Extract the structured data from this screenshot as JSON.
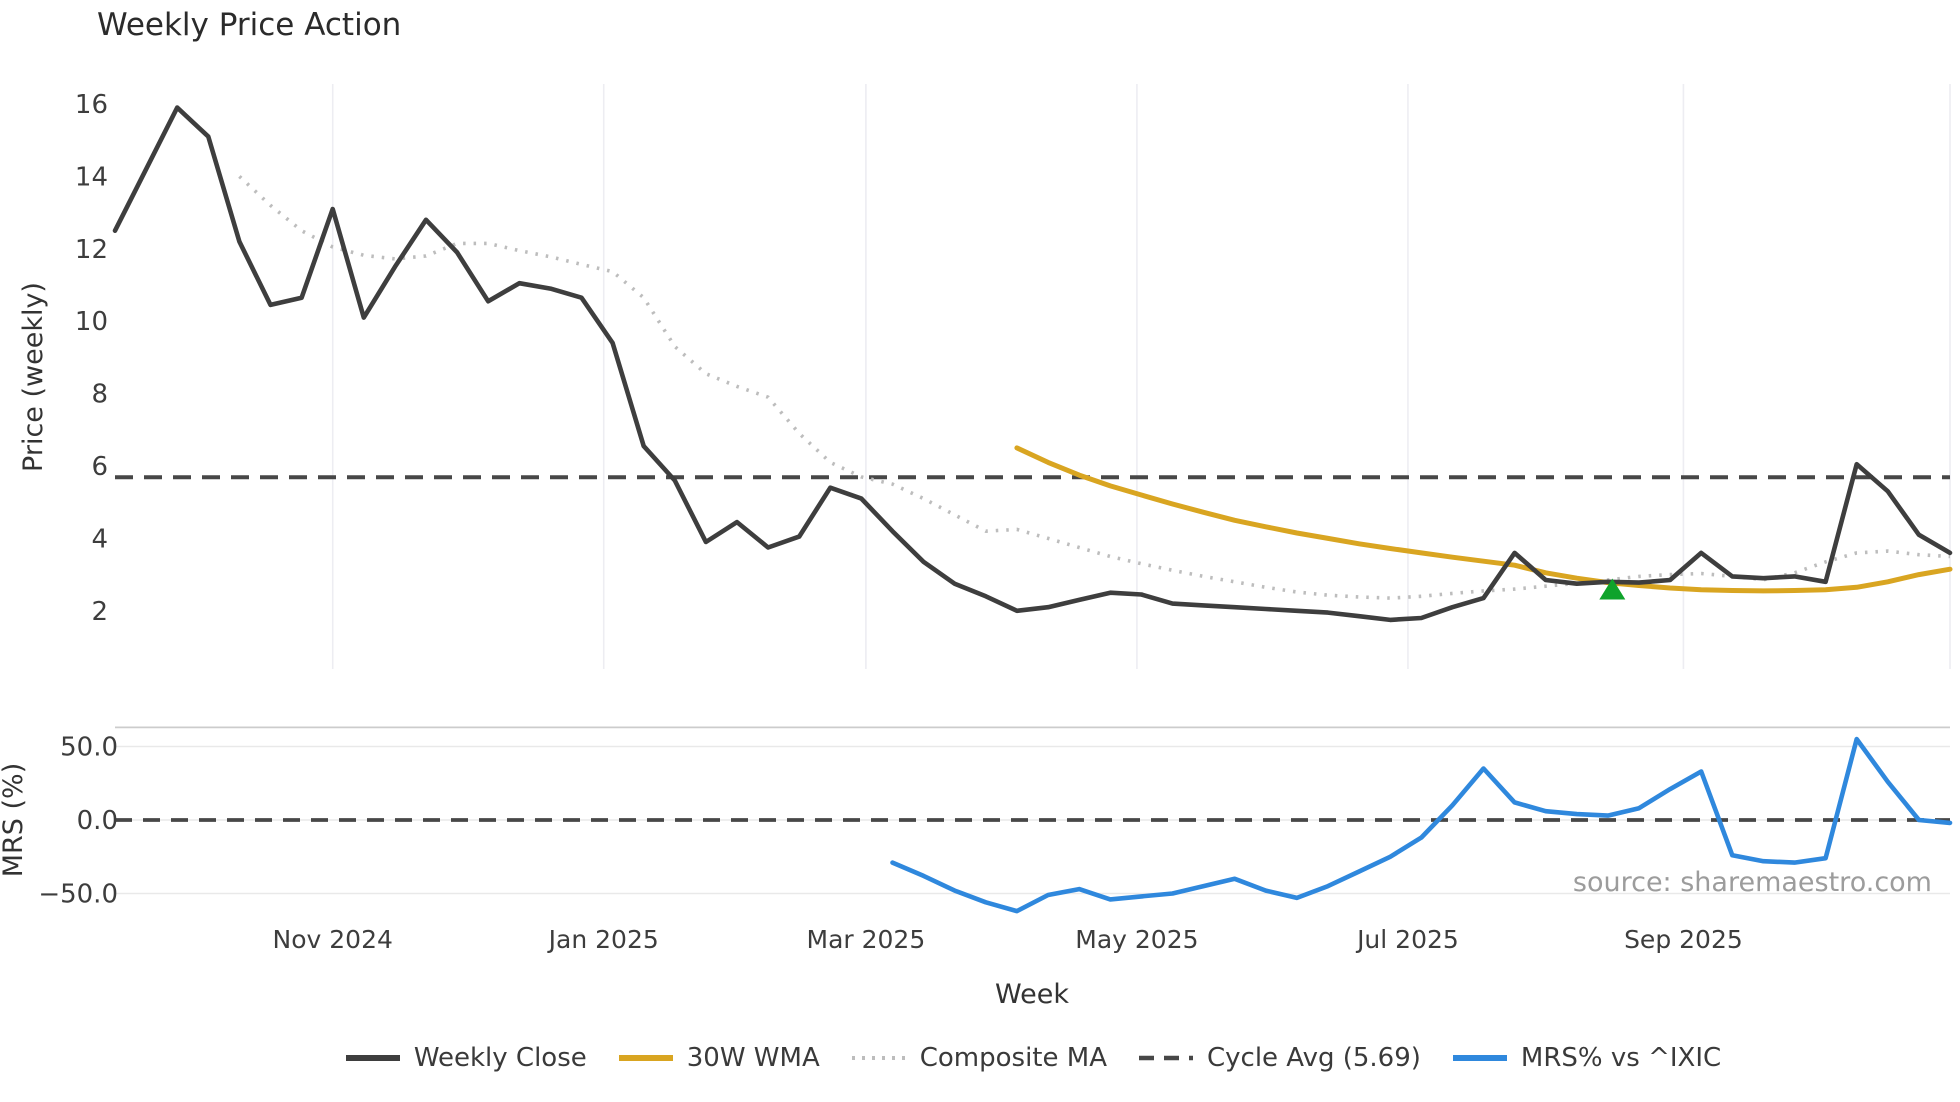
{
  "title": "Weekly Price Action",
  "source_note": "source: sharemaestro.com",
  "colors": {
    "weekly_close": "#3e3e3e",
    "wma_30w": "#d9a521",
    "composite_ma": "#bdbdbd",
    "cycle_avg": "#474747",
    "mrs_line": "#2f88dd",
    "signal_green": "#0fa32b",
    "grid": "#ededf2",
    "mrs_grid": "#e9e9e9",
    "mrs_top_border": "#cccccc",
    "background": "#ffffff"
  },
  "weeks": [
    "2024-09-13",
    "2024-09-20",
    "2024-09-27",
    "2024-10-04",
    "2024-10-11",
    "2024-10-18",
    "2024-10-25",
    "2024-11-01",
    "2024-11-08",
    "2024-11-15",
    "2024-11-22",
    "2024-11-29",
    "2024-12-06",
    "2024-12-13",
    "2024-12-20",
    "2024-12-27",
    "2025-01-03",
    "2025-01-10",
    "2025-01-17",
    "2025-01-24",
    "2025-01-31",
    "2025-02-07",
    "2025-02-14",
    "2025-02-21",
    "2025-02-28",
    "2025-03-07",
    "2025-03-14",
    "2025-03-21",
    "2025-03-28",
    "2025-04-04",
    "2025-04-11",
    "2025-04-18",
    "2025-04-25",
    "2025-05-02",
    "2025-05-09",
    "2025-05-16",
    "2025-05-23",
    "2025-05-30",
    "2025-06-06",
    "2025-06-13",
    "2025-06-20",
    "2025-06-27",
    "2025-07-04",
    "2025-07-11",
    "2025-07-18",
    "2025-07-25",
    "2025-08-01",
    "2025-08-08",
    "2025-08-15",
    "2025-08-22",
    "2025-08-29",
    "2025-09-05",
    "2025-09-12",
    "2025-09-19",
    "2025-09-26",
    "2025-10-03",
    "2025-10-10",
    "2025-10-17",
    "2025-10-24",
    "2025-10-31"
  ],
  "chart_data": [
    {
      "type": "line",
      "panel": "price",
      "title": "Weekly Price Action",
      "ylabel": "Price (weekly)",
      "xlabel": "Week",
      "ylim": [
        0.5,
        16.8
      ],
      "yticks": [
        16,
        14,
        12,
        10,
        8,
        6,
        4,
        2
      ],
      "x_tick_labels": [
        {
          "date": "2024-11-01",
          "label": "Nov 2024"
        },
        {
          "date": "2025-01-01",
          "label": "Jan 2025"
        },
        {
          "date": "2025-03-01",
          "label": "Mar 2025"
        },
        {
          "date": "2025-05-01",
          "label": "May 2025"
        },
        {
          "date": "2025-07-01",
          "label": "Jul 2025"
        },
        {
          "date": "2025-09-01",
          "label": "Sep 2025"
        },
        {
          "date": "2025-11-01",
          "label": ""
        }
      ],
      "grid": "vertical month gridlines, no horizontal gridlines",
      "legend_position": "bottom center",
      "series": [
        {
          "name": "Weekly Close",
          "style": "solid",
          "color": "#3e3e3e",
          "start": 0,
          "values": [
            12.5,
            14.2,
            15.9,
            15.1,
            12.2,
            10.45,
            10.65,
            13.1,
            10.1,
            11.5,
            12.8,
            11.9,
            10.55,
            11.05,
            10.9,
            10.65,
            9.4,
            6.55,
            5.6,
            3.9,
            4.45,
            3.75,
            4.05,
            5.4,
            5.1,
            4.2,
            3.35,
            2.75,
            2.4,
            2.0,
            2.1,
            2.3,
            2.5,
            2.45,
            2.2,
            2.15,
            2.1,
            2.05,
            2.0,
            1.95,
            1.85,
            1.75,
            1.8,
            2.1,
            2.35,
            3.6,
            2.85,
            2.75,
            2.8,
            2.78,
            2.85,
            3.6,
            2.95,
            2.9,
            2.95,
            2.8,
            6.05,
            5.3,
            4.1,
            3.6
          ]
        },
        {
          "name": "30W WMA",
          "style": "solid",
          "color": "#d9a521",
          "start": 29,
          "values": [
            6.5,
            6.1,
            5.75,
            5.45,
            5.2,
            4.95,
            4.72,
            4.5,
            4.32,
            4.15,
            4.0,
            3.85,
            3.72,
            3.6,
            3.48,
            3.37,
            3.26,
            3.05,
            2.9,
            2.78,
            2.7,
            2.63,
            2.58,
            2.56,
            2.55,
            2.56,
            2.58,
            2.65,
            2.8,
            3.0,
            3.15
          ]
        },
        {
          "name": "Composite MA",
          "style": "dotted",
          "color": "#bdbdbd",
          "start": 4,
          "values": [
            14.0,
            13.2,
            12.5,
            12.05,
            11.82,
            11.72,
            11.8,
            12.15,
            12.15,
            11.95,
            11.78,
            11.57,
            11.37,
            10.65,
            9.3,
            8.55,
            8.2,
            7.9,
            6.9,
            6.1,
            5.7,
            5.5,
            5.1,
            4.65,
            4.2,
            4.25,
            4.0,
            3.75,
            3.5,
            3.3,
            3.12,
            2.95,
            2.8,
            2.65,
            2.52,
            2.43,
            2.38,
            2.35,
            2.4,
            2.48,
            2.55,
            2.6,
            2.68,
            2.76,
            2.85,
            2.95,
            3.0,
            3.03,
            2.95,
            2.86,
            3.05,
            3.35,
            3.6,
            3.65,
            3.55,
            3.5
          ]
        },
        {
          "name": "Cycle Avg (5.69)",
          "style": "dashed-horizontal",
          "color": "#474747",
          "value": 5.69
        }
      ],
      "signal_marker": {
        "date": "2025-08-16",
        "price": 2.56,
        "shape": "triangle-up",
        "color": "#0fa32b"
      }
    },
    {
      "type": "line",
      "panel": "mrs",
      "ylabel": "MRS (%)",
      "ylim": [
        -68,
        63
      ],
      "ytick_labels": [
        "50.0",
        "0.0",
        "−50.0"
      ],
      "ytick_values": [
        50,
        0,
        -50
      ],
      "zero_line": {
        "style": "dashed",
        "value": 0,
        "color": "#474747"
      },
      "series": [
        {
          "name": "MRS% vs ^IXIC",
          "style": "solid",
          "color": "#2f88dd",
          "start": 25,
          "values": [
            -29,
            -38,
            -48,
            -56,
            -62,
            -51,
            -47,
            -54,
            -52,
            -50,
            -45,
            -40,
            -48,
            -53,
            -45,
            -35,
            -25,
            -12,
            10,
            35,
            12,
            6,
            4,
            3,
            8,
            21,
            33,
            -24,
            -28,
            -29,
            -26,
            55,
            26,
            0,
            -2
          ]
        }
      ]
    }
  ],
  "legend": [
    {
      "label": "Weekly Close",
      "color": "#3e3e3e",
      "style": "solid"
    },
    {
      "label": "30W WMA",
      "color": "#d9a521",
      "style": "solid"
    },
    {
      "label": "Composite MA",
      "color": "#bdbdbd",
      "style": "dotted"
    },
    {
      "label": "Cycle Avg (5.69)",
      "color": "#474747",
      "style": "dashed"
    },
    {
      "label": "MRS% vs ^IXIC",
      "color": "#2f88dd",
      "style": "solid"
    }
  ]
}
